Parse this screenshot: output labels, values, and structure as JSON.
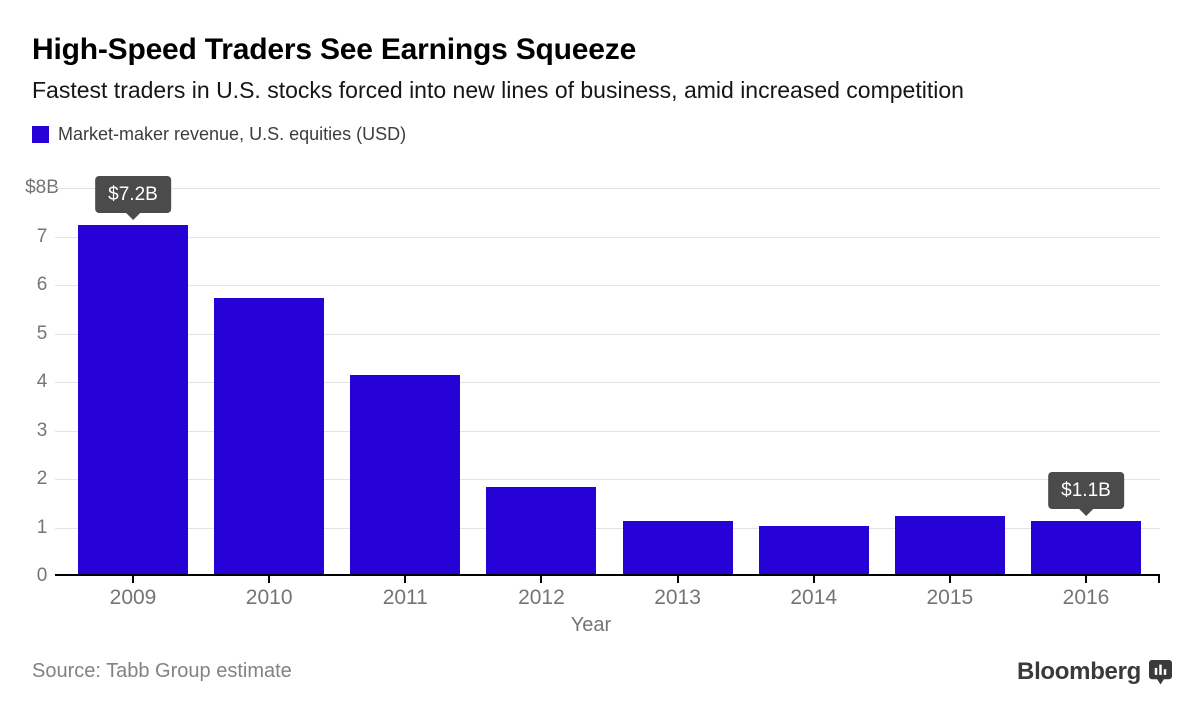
{
  "header": {
    "title": "High-Speed Traders See Earnings Squeeze",
    "subtitle": "Fastest traders in U.S. stocks forced into new lines of business, amid increased competition"
  },
  "legend": {
    "label": "Market-maker revenue, U.S. equities (USD)",
    "swatch_color": "#2602d6"
  },
  "chart_data": {
    "type": "bar",
    "title": "Market-maker revenue, U.S. equities (USD)",
    "categories": [
      "2009",
      "2010",
      "2011",
      "2012",
      "2013",
      "2014",
      "2015",
      "2016"
    ],
    "values": [
      7.2,
      5.7,
      4.1,
      1.8,
      1.1,
      1.0,
      1.2,
      1.1
    ],
    "xlabel": "Year",
    "ylabel": "",
    "ylim": [
      0,
      8
    ],
    "y_ticks": [
      {
        "value": 8,
        "label": "$8B"
      },
      {
        "value": 7,
        "label": "7"
      },
      {
        "value": 6,
        "label": "6"
      },
      {
        "value": 5,
        "label": "5"
      },
      {
        "value": 4,
        "label": "4"
      },
      {
        "value": 3,
        "label": "3"
      },
      {
        "value": 2,
        "label": "2"
      },
      {
        "value": 1,
        "label": "1"
      },
      {
        "value": 0,
        "label": "0"
      }
    ],
    "grid": true,
    "legend_position": "top-left",
    "bar_color": "#2602d6",
    "annotations": [
      {
        "category": "2009",
        "index": 0,
        "label": "$7.2B"
      },
      {
        "category": "2016",
        "index": 7,
        "label": "$1.1B"
      }
    ]
  },
  "footer": {
    "source": "Source: Tabb Group estimate",
    "brand": "Bloomberg"
  },
  "colors": {
    "bar": "#2602d6",
    "tooltip_bg": "#4b4b4b",
    "tooltip_text": "#ffffff",
    "axis_text": "#757575",
    "gridline": "#e4e4e4",
    "axis_line": "#000000"
  }
}
